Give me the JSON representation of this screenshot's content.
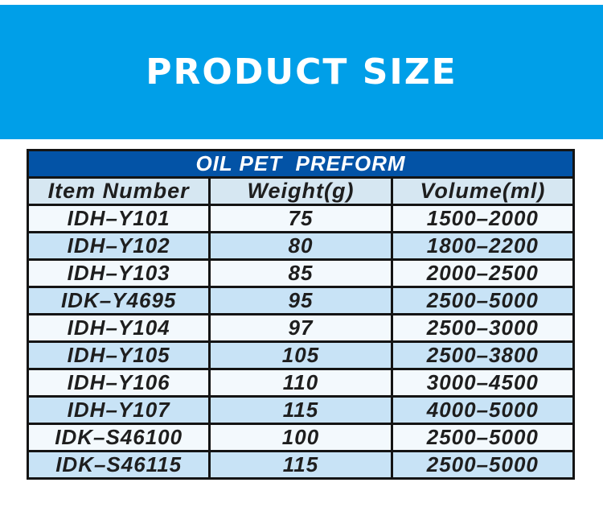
{
  "banner": {
    "title": "PRODUCT SIZE"
  },
  "table": {
    "title": "OIL PET  PREFORM",
    "columns": [
      "Item Number",
      "Weight(g)",
      "Volume(ml)"
    ],
    "rows": [
      [
        "IDH–Y101",
        "75",
        "1500–2000"
      ],
      [
        "IDH–Y102",
        "80",
        "1800–2200"
      ],
      [
        "IDH–Y103",
        "85",
        "2000–2500"
      ],
      [
        "IDK–Y4695",
        "95",
        "2500–5000"
      ],
      [
        "IDH–Y104",
        "97",
        "2500–3000"
      ],
      [
        "IDH–Y105",
        "105",
        "2500–3800"
      ],
      [
        "IDH–Y106",
        "110",
        "3000–4500"
      ],
      [
        "IDH–Y107",
        "115",
        "4000–5000"
      ],
      [
        "IDK–S46100",
        "100",
        "2500–5000"
      ],
      [
        "IDK–S46115",
        "115",
        "2500–5000"
      ]
    ]
  },
  "colors": {
    "banner_bg": "#009FE8",
    "banner_text": "#FFFFFF",
    "table_title_bg": "#0353A6",
    "column_header_bg": "#D6E7F2",
    "row_light": "#F3F9FD",
    "row_blue": "#C8E3F6",
    "border": "#141414",
    "text": "#1E1E1E"
  }
}
